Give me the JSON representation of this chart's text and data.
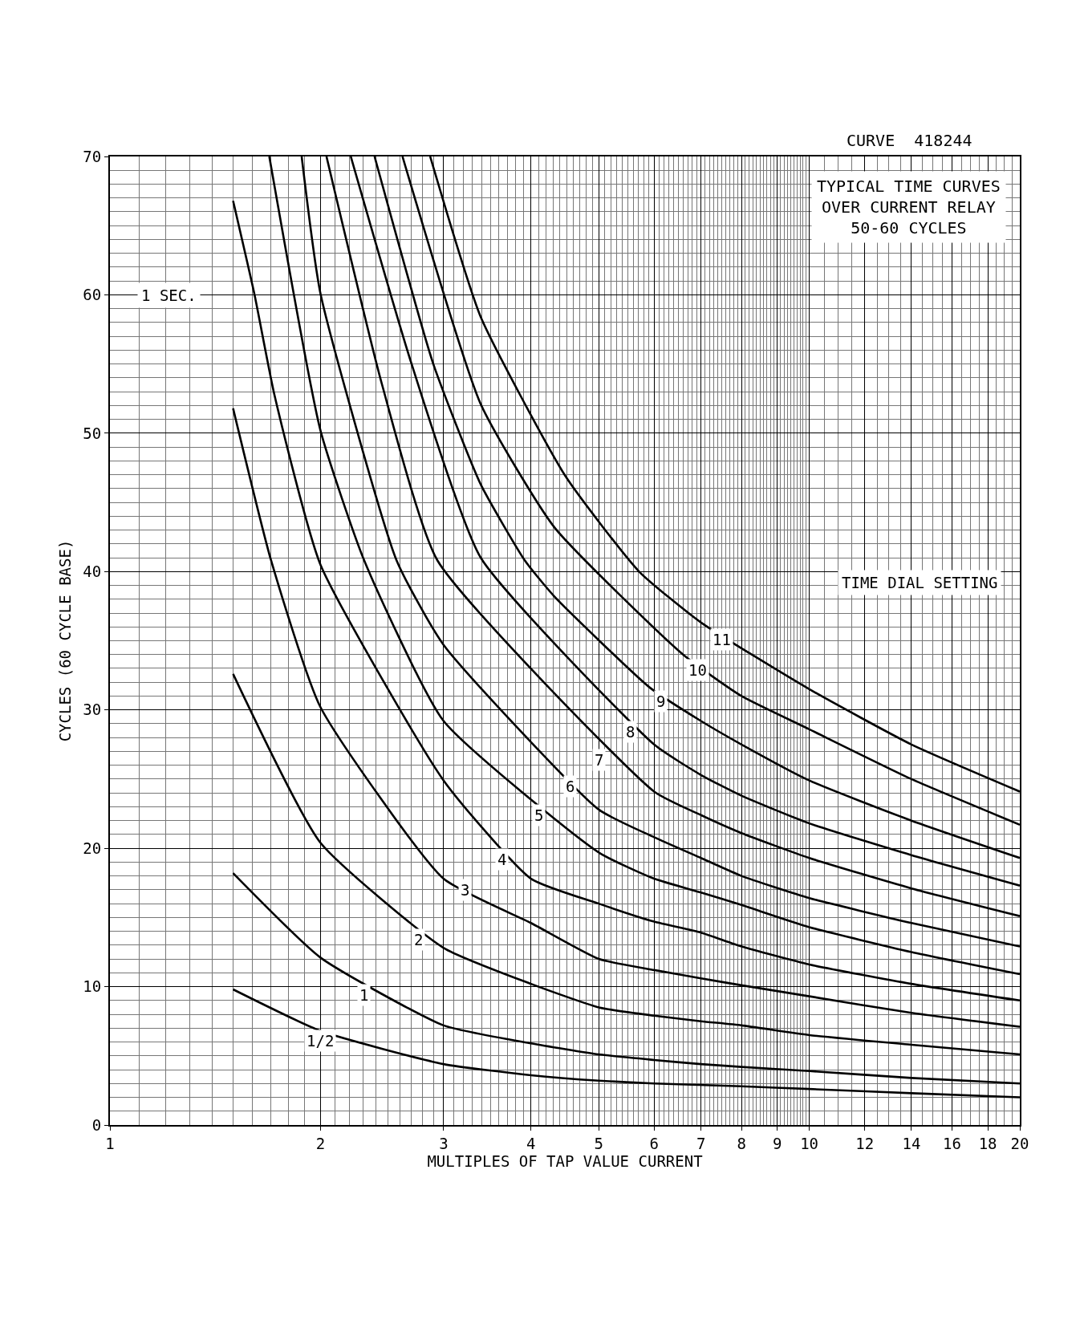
{
  "chart_data": {
    "type": "line",
    "title": "TYPICAL TIME CURVES\nOVER CURRENT RELAY\n50-60 CYCLES",
    "subtitle": "CURVE  418244",
    "xlabel": "MULTIPLES OF TAP VALUE CURRENT",
    "ylabel": "CYCLES (60 CYCLE BASE)",
    "log": "x",
    "grid": true,
    "marker": "none",
    "line_style": "solid",
    "xlim": [
      1,
      20
    ],
    "xticks": [
      1,
      2,
      3,
      4,
      5,
      6,
      7,
      8,
      9,
      10,
      12,
      14,
      16,
      18,
      20
    ],
    "ylim": [
      0,
      70
    ],
    "yticks": [
      0,
      10,
      20,
      30,
      40,
      50,
      60,
      70
    ],
    "series": [
      {
        "color": "#000000",
        "x": [
          1.5,
          2,
          3,
          4,
          5,
          6,
          8,
          10,
          14,
          20
        ],
        "values": [
          9.8,
          6.8,
          4.4,
          3.6,
          3.2,
          3.0,
          2.8,
          2.6,
          2.3,
          2.0
        ]
      },
      {
        "color": "#000000",
        "x": [
          1.5,
          2,
          3,
          4,
          5,
          6,
          7,
          8,
          10,
          14,
          20
        ],
        "values": [
          18.2,
          12.1,
          7.2,
          5.9,
          5.1,
          4.7,
          4.4,
          4.2,
          3.9,
          3.4,
          3.0
        ]
      },
      {
        "color": "#000000",
        "x": [
          1.5,
          2,
          3,
          4,
          5,
          6,
          7,
          8,
          10,
          14,
          20
        ],
        "values": [
          32.6,
          20.4,
          12.8,
          10.2,
          8.5,
          7.9,
          7.5,
          7.2,
          6.5,
          5.8,
          5.1
        ]
      },
      {
        "color": "#000000",
        "x": [
          1.5,
          1.7,
          2,
          3,
          4,
          5,
          6,
          7,
          8,
          10,
          14,
          20
        ],
        "values": [
          51.8,
          40.8,
          30.2,
          17.8,
          14.6,
          12.0,
          11.2,
          10.6,
          10.1,
          9.3,
          8.1,
          7.1
        ]
      },
      {
        "color": "#000000",
        "x": [
          1.5,
          1.61,
          1.72,
          2,
          3,
          4,
          5,
          6,
          7,
          8,
          10,
          14,
          20
        ],
        "values": [
          66.8,
          60,
          52.7,
          40.5,
          24.9,
          17.8,
          16.0,
          14.7,
          13.9,
          12.9,
          11.6,
          10.2,
          9.0
        ]
      },
      {
        "color": "#000000",
        "x": [
          1.69,
          2,
          2.31,
          3,
          5,
          6,
          7,
          8,
          10,
          14,
          20
        ],
        "values": [
          70,
          50.2,
          40.8,
          29.2,
          19.7,
          17.8,
          16.8,
          15.9,
          14.3,
          12.5,
          10.9
        ]
      },
      {
        "color": "#000000",
        "x": [
          1.88,
          2,
          2.57,
          3,
          5,
          6,
          7,
          8,
          10,
          14,
          20
        ],
        "values": [
          70,
          60.1,
          40.8,
          34.7,
          22.8,
          20.8,
          19.3,
          18.0,
          16.4,
          14.6,
          12.9
        ]
      },
      {
        "color": "#000000",
        "x": [
          2.04,
          2.45,
          2.94,
          6,
          7,
          8,
          10,
          14,
          20
        ],
        "values": [
          70,
          53.5,
          40.8,
          24.1,
          22.4,
          21.1,
          19.3,
          17.1,
          15.1
        ]
      },
      {
        "color": "#000000",
        "x": [
          2.21,
          2.7,
          3.39,
          6,
          7,
          8,
          10,
          14,
          20
        ],
        "values": [
          70,
          55,
          41.0,
          27.5,
          25.3,
          23.8,
          21.8,
          19.5,
          17.3
        ]
      },
      {
        "color": "#000000",
        "x": [
          2.39,
          2.9,
          3.39,
          3.92,
          4.32,
          5.92,
          7,
          8,
          10,
          14,
          20
        ],
        "values": [
          70,
          55,
          46.3,
          40.8,
          38.2,
          31.6,
          29.2,
          27.5,
          24.9,
          22.0,
          19.3
        ]
      },
      {
        "color": "#000000",
        "x": [
          2.62,
          3.39,
          4.32,
          6.6,
          8,
          10,
          14,
          20
        ],
        "values": [
          70,
          52.1,
          43.2,
          34.0,
          31.0,
          28.6,
          25.0,
          21.7
        ]
      },
      {
        "color": "#000000",
        "x": [
          2.87,
          3.39,
          4.48,
          5.71,
          7.01,
          10,
          14,
          20
        ],
        "values": [
          70,
          58.4,
          46.9,
          40.0,
          36.3,
          31.5,
          27.5,
          24.1
        ]
      }
    ],
    "annotations": [
      {
        "text": "1/2",
        "x": 2.0,
        "y": 6.1
      },
      {
        "text": "1",
        "x": 2.31,
        "y": 9.4
      },
      {
        "text": "2",
        "x": 2.76,
        "y": 13.4
      },
      {
        "text": "3",
        "x": 3.22,
        "y": 17.0
      },
      {
        "text": "4",
        "x": 3.63,
        "y": 19.2
      },
      {
        "text": "5",
        "x": 4.1,
        "y": 22.4
      },
      {
        "text": "6",
        "x": 4.55,
        "y": 24.5
      },
      {
        "text": "7",
        "x": 5.01,
        "y": 26.4
      },
      {
        "text": "8",
        "x": 5.54,
        "y": 28.4
      },
      {
        "text": "9",
        "x": 6.14,
        "y": 30.6
      },
      {
        "text": "10",
        "x": 6.92,
        "y": 32.9
      },
      {
        "text": "11",
        "x": 7.5,
        "y": 35.1
      },
      "1 SEC.",
      "TIME DIAL SETTING"
    ]
  }
}
